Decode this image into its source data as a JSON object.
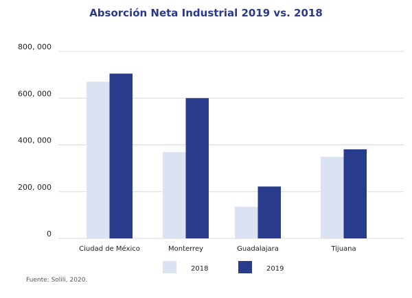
{
  "chart_data": {
    "type": "bar",
    "title": "Absorción Neta Industrial 2019 vs. 2018",
    "categories": [
      "Ciudad de México",
      "Monterrey",
      "Guadalajara",
      "Tijuana"
    ],
    "series": [
      {
        "name": "2018",
        "values": [
          670000,
          369000,
          136000,
          349000
        ],
        "color": "#dbe2f1"
      },
      {
        "name": "2019",
        "values": [
          705000,
          600000,
          222000,
          381000
        ],
        "color": "#293c8b"
      }
    ],
    "yticks": [
      0,
      200000,
      400000,
      600000,
      800000
    ],
    "ytick_labels": [
      "0",
      "200, 000",
      "400, 000",
      "600, 000",
      "800, 000"
    ],
    "ylim": [
      0,
      800000
    ],
    "grid": true,
    "legend_placement": "bottom",
    "source": "Fuente: Solili, 2020."
  }
}
